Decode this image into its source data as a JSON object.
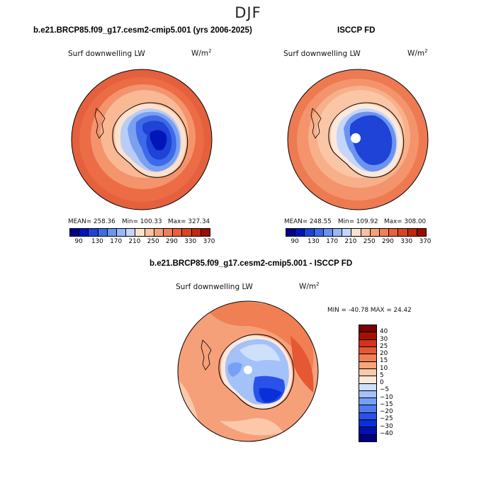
{
  "season": "DJF",
  "colors": {
    "abs_scale": [
      "#00008b",
      "#0016b8",
      "#1f43d6",
      "#3d6ae8",
      "#6b93f0",
      "#9ab8f5",
      "#c4d6fa",
      "#fde3cf",
      "#fbc1a0",
      "#f6a07a",
      "#f08059",
      "#e9603c",
      "#da4424",
      "#c22810",
      "#9a0c00"
    ],
    "diff_scale": [
      "#000082",
      "#0010b0",
      "#0930d8",
      "#2a52e8",
      "#507af0",
      "#77a0f5",
      "#a4c1f9",
      "#cfe0fb",
      "#fde8dc",
      "#fbc9aa",
      "#f7a57c",
      "#f07f54",
      "#e65733",
      "#d2341a",
      "#a61000",
      "#7a0000"
    ]
  },
  "chart_data": [
    {
      "type": "heatmap",
      "panel": "model",
      "title": "b.e21.BRCP85.f09_g17.cesm2-cmip5.001 (yrs 2006-2025)",
      "variable": "Surf downwelling LW",
      "units": "W/m2",
      "mean_label": "MEAN= 258.36",
      "min_label": "Min= 100.33",
      "max_label": "Max= 327.34",
      "stats": {
        "mean": 258.36,
        "min": 100.33,
        "max": 327.34
      },
      "colorbar_ticks": [
        "90",
        "130",
        "170",
        "210",
        "250",
        "290",
        "330",
        "370"
      ],
      "levels": [
        90,
        110,
        130,
        150,
        170,
        190,
        210,
        230,
        250,
        270,
        290,
        310,
        330,
        350,
        370
      ]
    },
    {
      "type": "heatmap",
      "panel": "obs",
      "title": "ISCCP FD",
      "variable": "Surf downwelling LW",
      "units": "W/m2",
      "mean_label": "MEAN= 248.55",
      "min_label": "Min= 109.92",
      "max_label": "Max= 308.00",
      "stats": {
        "mean": 248.55,
        "min": 109.92,
        "max": 308.0
      },
      "colorbar_ticks": [
        "90",
        "130",
        "170",
        "210",
        "250",
        "290",
        "330",
        "370"
      ],
      "levels": [
        90,
        110,
        130,
        150,
        170,
        190,
        210,
        230,
        250,
        270,
        290,
        310,
        330,
        350,
        370
      ]
    },
    {
      "type": "heatmap",
      "panel": "difference",
      "title": "b.e21.BRCP85.f09_g17.cesm2-cmip5.001 - ISCCP FD",
      "variable": "Surf downwelling LW",
      "units": "W/m2",
      "minmax_label": "MIN = -40.78  MAX =  24.42",
      "stats": {
        "min": -40.78,
        "max": 24.42
      },
      "colorbar_ticks": [
        "40",
        "30",
        "25",
        "20",
        "15",
        "10",
        "5",
        "0",
        "-5",
        "-10",
        "-15",
        "-20",
        "-25",
        "-30",
        "-40"
      ],
      "levels": [
        -40,
        -30,
        -25,
        -20,
        -15,
        -10,
        -5,
        0,
        5,
        10,
        15,
        20,
        25,
        30,
        40
      ]
    }
  ]
}
